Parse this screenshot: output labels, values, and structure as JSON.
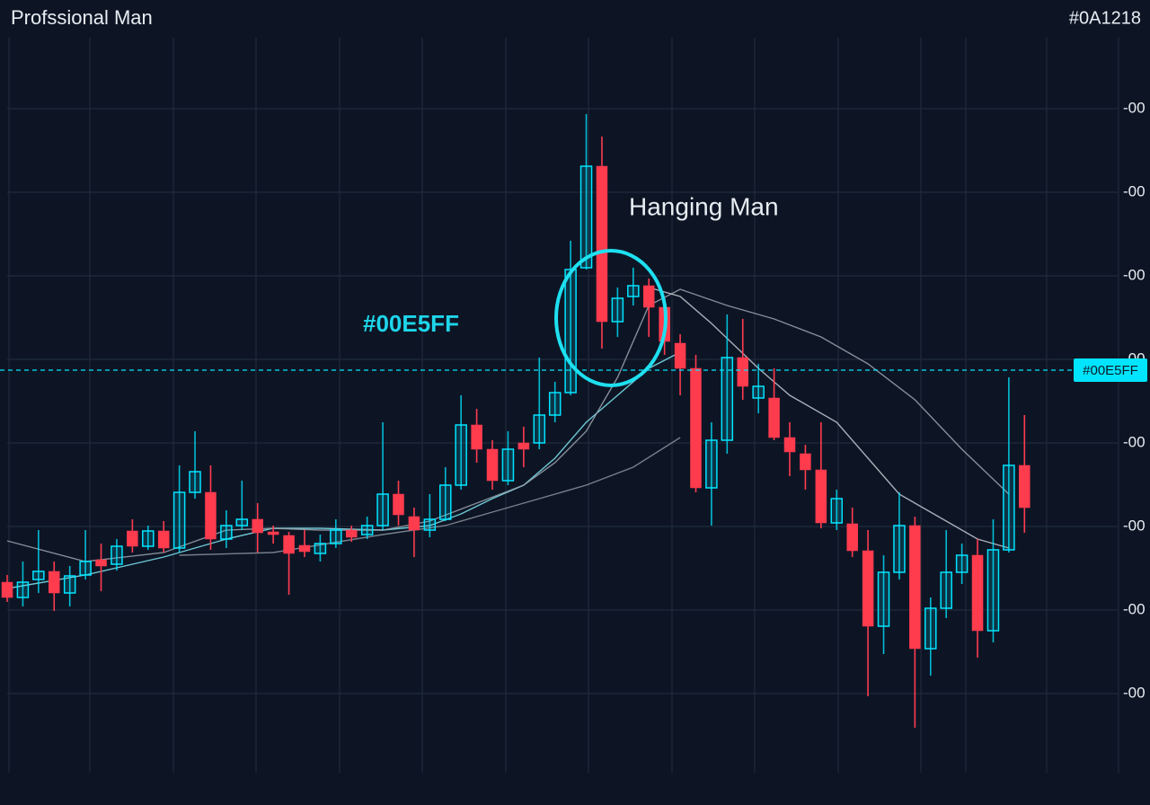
{
  "chart_data": {
    "type": "candlestick",
    "title": "Profssional Man",
    "corner_text": "#0A1218",
    "annotation": "Hanging Man",
    "side_label": "#00E5FF",
    "price_tag": "#00E5FF",
    "price_line": 448,
    "up_color": "#00E5FF",
    "down_color": "#FF3B4E",
    "grid": true,
    "ylim": [
      0,
      818
    ],
    "yticks": [
      {
        "value": 88,
        "label": "-00"
      },
      {
        "value": 181,
        "label": "-00"
      },
      {
        "value": 274,
        "label": "-00"
      },
      {
        "value": 367,
        "label": "-00"
      },
      {
        "value": 460,
        "label": "-00"
      },
      {
        "value": 553,
        "label": "-00"
      },
      {
        "value": 646,
        "label": "-00"
      },
      {
        "value": 739,
        "label": "-00"
      }
    ],
    "open": [
      212,
      195,
      215,
      224,
      200,
      220,
      237,
      232,
      269,
      252,
      269,
      250,
      312,
      312,
      260,
      275,
      282,
      268,
      264,
      253,
      244,
      255,
      270,
      265,
      275,
      310,
      285,
      270,
      282,
      320,
      387,
      360,
      325,
      367,
      367,
      398,
      423,
      562,
      675,
      502,
      530,
      542,
      518,
      478,
      450,
      317,
      370,
      462,
      417,
      417,
      373,
      355,
      337,
      278,
      277,
      247,
      163,
      223,
      275,
      138,
      183,
      223,
      242,
      158,
      248,
      342
    ],
    "high": [
      220,
      235,
      270,
      235,
      230,
      270,
      255,
      260,
      282,
      275,
      280,
      342,
      380,
      342,
      292,
      325,
      300,
      275,
      268,
      270,
      265,
      282,
      275,
      285,
      390,
      325,
      295,
      310,
      340,
      420,
      405,
      370,
      380,
      385,
      462,
      435,
      592,
      733,
      708,
      540,
      562,
      550,
      530,
      488,
      465,
      390,
      510,
      505,
      455,
      450,
      390,
      365,
      390,
      315,
      295,
      270,
      242,
      312,
      285,
      195,
      270,
      255,
      260,
      282,
      440,
      398
    ],
    "low": [
      190,
      185,
      200,
      180,
      185,
      215,
      202,
      225,
      245,
      248,
      245,
      245,
      305,
      248,
      250,
      270,
      245,
      255,
      198,
      240,
      235,
      250,
      257,
      260,
      270,
      275,
      240,
      262,
      280,
      315,
      345,
      315,
      320,
      340,
      360,
      390,
      420,
      560,
      472,
      485,
      520,
      485,
      465,
      420,
      312,
      275,
      355,
      415,
      400,
      370,
      330,
      315,
      272,
      270,
      240,
      85,
      132,
      215,
      50,
      108,
      172,
      210,
      128,
      145,
      245,
      267
    ],
    "close": [
      195,
      212,
      224,
      200,
      219,
      235,
      230,
      252,
      252,
      269,
      250,
      312,
      335,
      260,
      275,
      282,
      267,
      265,
      244,
      246,
      255,
      270,
      262,
      275,
      310,
      287,
      270,
      282,
      320,
      387,
      360,
      325,
      360,
      360,
      398,
      423,
      560,
      675,
      502,
      528,
      542,
      518,
      480,
      450,
      317,
      370,
      462,
      430,
      430,
      373,
      357,
      337,
      278,
      305,
      247,
      163,
      223,
      275,
      138,
      183,
      223,
      242,
      158,
      248,
      342,
      295
    ],
    "overlays": [
      {
        "color": "#7fe8f5",
        "x": [
          0,
          5,
          8,
          10,
          14,
          17,
          20,
          24,
          27,
          29,
          31,
          33,
          35,
          37,
          39,
          41,
          43
        ],
        "values": [
          205,
          220,
          232,
          240,
          260,
          272,
          272,
          270,
          275,
          288,
          305,
          320,
          350,
          390,
          420,
          450,
          468
        ]
      },
      {
        "color": "#9aa3ad",
        "x": [
          0,
          5,
          10,
          14,
          17,
          20,
          24,
          27,
          30,
          33,
          35,
          37,
          39,
          41,
          43,
          46,
          49,
          52,
          55,
          58,
          61,
          64
        ],
        "values": [
          258,
          235,
          245,
          270,
          272,
          270,
          270,
          280,
          300,
          320,
          345,
          380,
          440,
          520,
          538,
          520,
          505,
          485,
          455,
          415,
          360,
          310
        ]
      },
      {
        "color": "#c4cad1",
        "x": [
          41,
          43,
          45,
          48,
          50,
          53,
          55,
          57,
          60,
          62,
          64
        ],
        "values": [
          540,
          530,
          500,
          450,
          420,
          390,
          350,
          310,
          280,
          260,
          250
        ]
      },
      {
        "color": "#8a929c",
        "x": [
          11,
          17,
          24,
          28,
          31,
          34,
          37,
          40,
          43
        ],
        "values": [
          242,
          245,
          265,
          275,
          290,
          305,
          320,
          340,
          373
        ]
      }
    ]
  }
}
